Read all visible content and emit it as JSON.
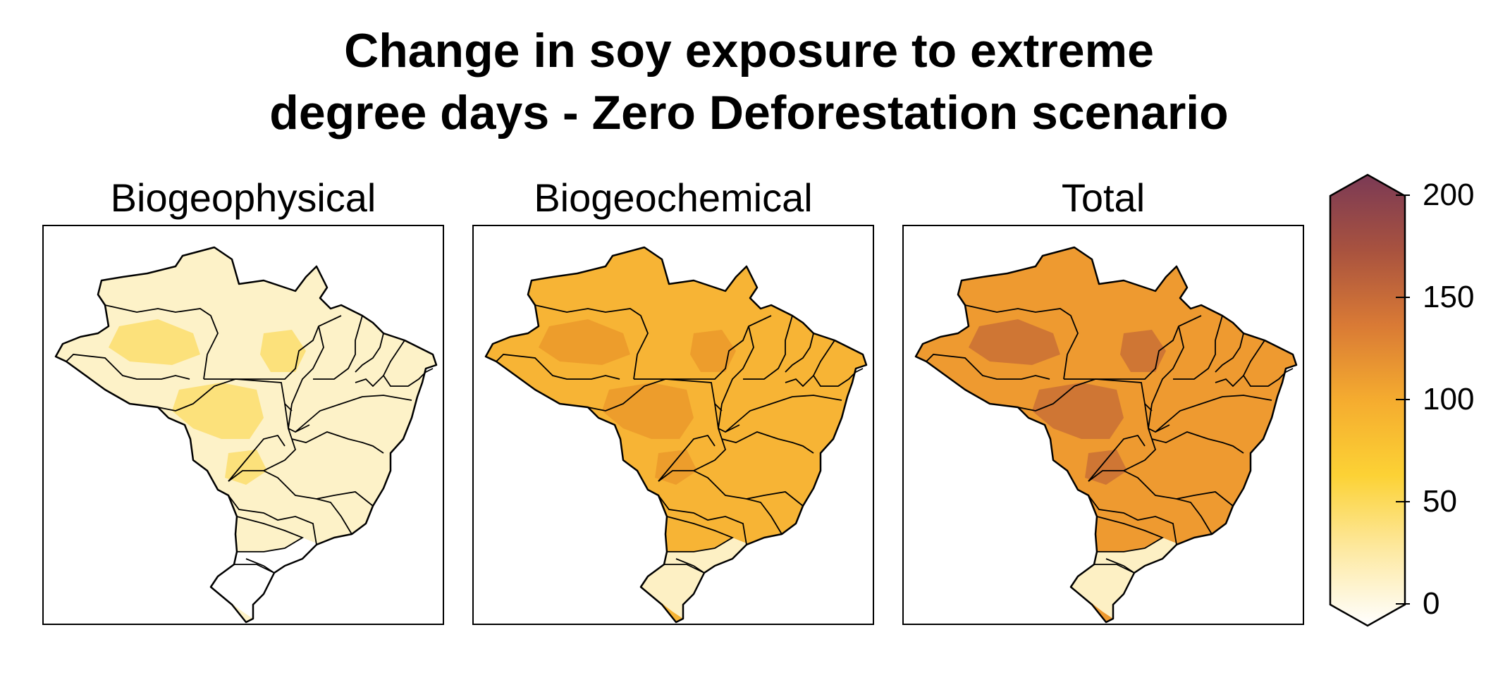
{
  "title_line1": "Change in soy exposure to extreme",
  "title_line2": "degree days - Zero Deforestation scenario",
  "panels": [
    {
      "name": "Biogeophysical",
      "fill": "#fdf2c8",
      "hot": "#fbd648"
    },
    {
      "name": "Biogeochemical",
      "fill": "#f7b435",
      "hot": "#e9962a"
    },
    {
      "name": "Total",
      "fill": "#ee9a30",
      "hot": "#c46a35"
    }
  ],
  "colorbar": {
    "ticks": [
      "200",
      "150",
      "100",
      "50",
      "0"
    ],
    "colors": [
      "#ffffff",
      "#fde9a2",
      "#fcd235",
      "#f5ac2f",
      "#d97a35",
      "#a8523f",
      "#7b3a55"
    ],
    "extend": "both"
  }
}
